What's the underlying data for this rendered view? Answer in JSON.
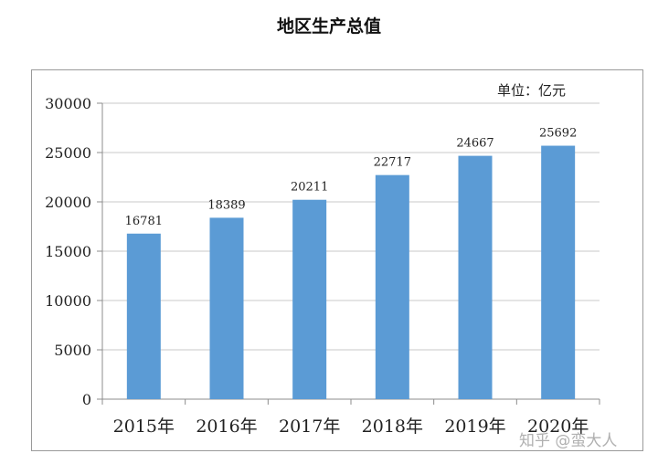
{
  "title": "地区生产总值",
  "unit": "单位：亿元",
  "watermark": "知乎 @蛮大人",
  "colors": {
    "bar": "#5b9bd5",
    "grid": "#c8c8c8",
    "axis": "#8c8c8c"
  },
  "chart_data": {
    "type": "bar",
    "title": "地区生产总值",
    "categories": [
      "2015年",
      "2016年",
      "2017年",
      "2018年",
      "2019年",
      "2020年"
    ],
    "values": [
      16781,
      18389,
      20211,
      22717,
      24667,
      25692
    ],
    "data_labels": [
      "16781",
      "18389",
      "20211",
      "22717",
      "24667",
      "25692"
    ],
    "y_ticks": [
      0,
      5000,
      10000,
      15000,
      20000,
      25000,
      30000
    ],
    "ylim": [
      0,
      30000
    ],
    "grid": true,
    "legend": "none"
  }
}
